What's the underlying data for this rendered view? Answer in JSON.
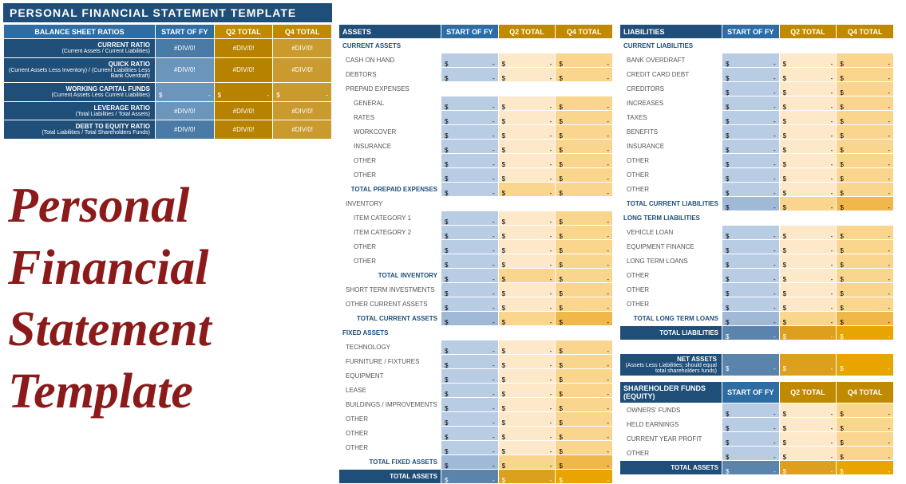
{
  "page_title": "PERSONAL FINANCIAL STATEMENT TEMPLATE",
  "watermark": "Personal\nFinancial\nStatement\nTemplate",
  "watermark_color": "#8b1a1a",
  "cols": {
    "start": "START OF FY",
    "q2": "Q2 TOTAL",
    "q4": "Q4 TOTAL"
  },
  "div0": "#DIV/0!",
  "dash": "-",
  "cur": "$",
  "colors": {
    "header_dark": "#1f4e79",
    "header_blue": "#2e6da4",
    "header_orange": "#c08a00",
    "blue_light": "#b8cce4",
    "blue_med": "#9fb9d6",
    "orange_light": "#fde9c9",
    "orange_med": "#f9d58e",
    "orange_dark": "#f0b84a",
    "total_blue": "#5b84ad",
    "total_or1": "#dd9f1e",
    "total_or2": "#e8a500"
  },
  "ratios": {
    "header": "BALANCE SHEET RATIOS",
    "rows": [
      {
        "main": "CURRENT RATIO",
        "sub": "(Current Assets / Current Liabilities)",
        "type": "div"
      },
      {
        "main": "QUICK RATIO",
        "sub": "(Current Assets Less Inventory) /\n(Current Liabilities Less Bank Overdraft)",
        "type": "div"
      },
      {
        "main": "WORKING CAPITAL FUNDS",
        "sub": "(Current Assets Less Current Liabilities)",
        "type": "money"
      },
      {
        "main": "LEVERAGE RATIO",
        "sub": "(Total Liabilities / Total Assets)",
        "type": "div"
      },
      {
        "main": "DEBT TO EQUITY RATIO",
        "sub": "(Total Liabilities / Total Shareholders Funds)",
        "type": "div"
      }
    ]
  },
  "assets": {
    "header": "ASSETS",
    "sections": [
      {
        "title": "CURRENT ASSETS",
        "rows": [
          {
            "label": "CASH ON HAND"
          },
          {
            "label": "DEBTORS"
          },
          {
            "label": "PREPAID EXPENSES",
            "noval": true
          },
          {
            "label": "GENERAL",
            "indent": true
          },
          {
            "label": "RATES",
            "indent": true
          },
          {
            "label": "WORKCOVER",
            "indent": true
          },
          {
            "label": "INSURANCE",
            "indent": true
          },
          {
            "label": "OTHER",
            "indent": true
          },
          {
            "label": "OTHER",
            "indent": true
          },
          {
            "subtotal": "TOTAL PREPAID EXPENSES"
          },
          {
            "label": "INVENTORY",
            "noval": true
          },
          {
            "label": "ITEM CATEGORY 1",
            "indent": true
          },
          {
            "label": "ITEM CATEGORY 2",
            "indent": true
          },
          {
            "label": "OTHER",
            "indent": true
          },
          {
            "label": "OTHER",
            "indent": true
          },
          {
            "subtotal": "TOTAL INVENTORY"
          },
          {
            "label": "SHORT TERM INVESTMENTS"
          },
          {
            "label": "OTHER CURRENT ASSETS"
          }
        ],
        "total": "TOTAL CURRENT ASSETS"
      },
      {
        "title": "FIXED ASSETS",
        "rows": [
          {
            "label": "TECHNOLOGY"
          },
          {
            "label": "FURNITURE / FIXTURES"
          },
          {
            "label": "EQUIPMENT"
          },
          {
            "label": "LEASE"
          },
          {
            "label": "BUILDINGS / IMPROVEMENTS"
          },
          {
            "label": "OTHER"
          },
          {
            "label": "OTHER"
          },
          {
            "label": "OTHER"
          }
        ],
        "total": "TOTAL FIXED ASSETS"
      }
    ],
    "grand_total": "TOTAL ASSETS"
  },
  "liabilities": {
    "header": "LIABILITIES",
    "sections": [
      {
        "title": "CURRENT LIABILITIES",
        "rows": [
          {
            "label": "BANK OVERDRAFT"
          },
          {
            "label": "CREDIT CARD DEBT"
          },
          {
            "label": "CREDITORS"
          },
          {
            "label": "INCREASES"
          },
          {
            "label": "TAXES"
          },
          {
            "label": "BENEFITS"
          },
          {
            "label": "INSURANCE"
          },
          {
            "label": "OTHER"
          },
          {
            "label": "OTHER"
          },
          {
            "label": "OTHER"
          }
        ],
        "total": "TOTAL CURRENT LIABILITIES"
      },
      {
        "title": "LONG TERM LIABILITIES",
        "rows": [
          {
            "label": "VEHICLE LOAN"
          },
          {
            "label": "EQUIPMENT FINANCE"
          },
          {
            "label": "LONG TERM LOANS"
          },
          {
            "label": "OTHER"
          },
          {
            "label": "OTHER"
          },
          {
            "label": "OTHER"
          }
        ],
        "total": "TOTAL LONG TERM LOANS"
      }
    ],
    "grand_total": "TOTAL LIABILITIES"
  },
  "net_assets": {
    "main": "NET ASSETS",
    "sub": "(Assets Less Liabilities; should equal\ntotal shareholders funds)"
  },
  "equity": {
    "header": "SHAREHOLDER FUNDS (EQUITY)",
    "rows": [
      {
        "label": "OWNERS' FUNDS"
      },
      {
        "label": "HELD EARNINGS"
      },
      {
        "label": "CURRENT YEAR PROFIT"
      },
      {
        "label": "OTHER"
      }
    ],
    "grand_total": "TOTAL ASSETS"
  }
}
